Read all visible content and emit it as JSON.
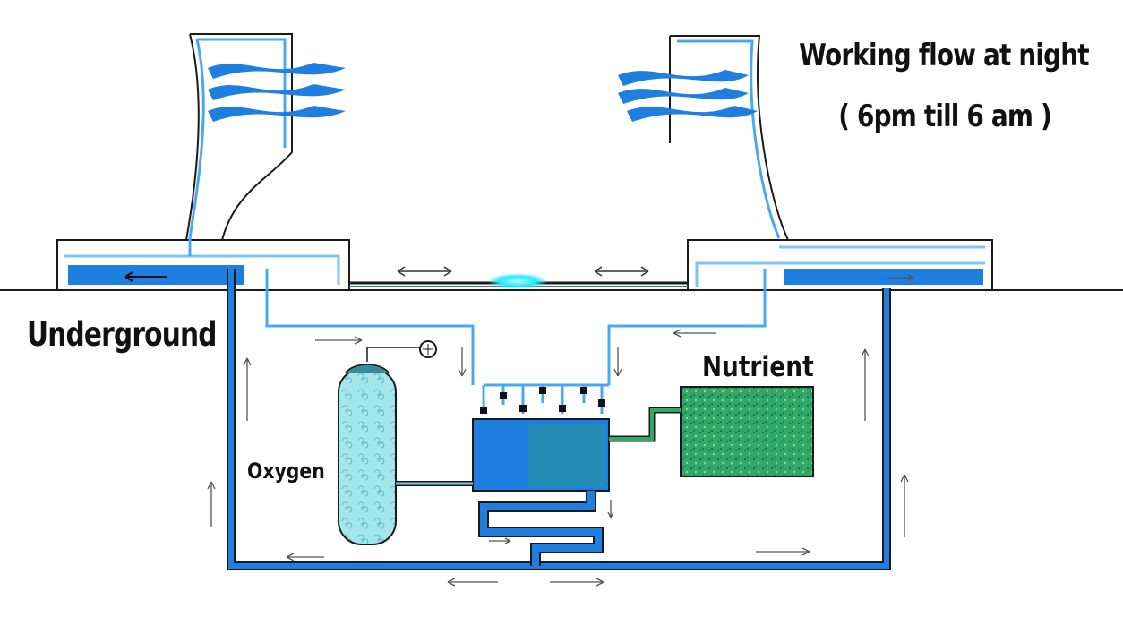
{
  "title": {
    "line1": "Working flow at night",
    "line2": "( 6pm till 6 am )"
  },
  "labels": {
    "underground": "Underground",
    "nutrient": "Nutrient",
    "oxygen": "Oxygen"
  },
  "colors": {
    "pipe_dark": "#1a78e0",
    "pipe_light": "#7fc4f5",
    "outline": "#1a1a1a",
    "nutrient_green": "#2fa86a",
    "oxygen_tank": "#9fe3ea",
    "glow": "#28e6ff"
  }
}
